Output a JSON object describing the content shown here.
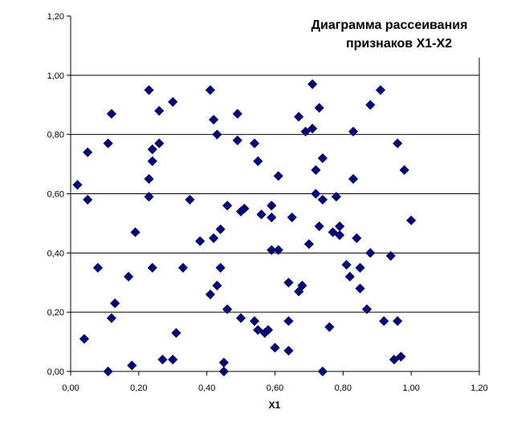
{
  "chart_data": {
    "type": "scatter",
    "title_lines": [
      "Диаграмма рассеивания",
      "признаков X1-X2"
    ],
    "xlabel": "X1",
    "ylabel": "",
    "xlim": [
      0,
      1.2
    ],
    "ylim": [
      0,
      1.2
    ],
    "x_ticks": [
      "0,00",
      "0,20",
      "0,40",
      "0,60",
      "0,80",
      "1,00",
      "1,20"
    ],
    "y_ticks": [
      "0,00",
      "0,20",
      "0,40",
      "0,60",
      "0,80",
      "1,00",
      "1,20"
    ],
    "grid": "horizontal",
    "legend": "none",
    "marker": "diamond",
    "marker_color": "#000080",
    "series": [
      {
        "points": [
          [
            0.02,
            0.63
          ],
          [
            0.04,
            0.11
          ],
          [
            0.05,
            0.58
          ],
          [
            0.05,
            0.74
          ],
          [
            0.08,
            0.35
          ],
          [
            0.11,
            0.77
          ],
          [
            0.11,
            0.0
          ],
          [
            0.12,
            0.18
          ],
          [
            0.12,
            0.87
          ],
          [
            0.13,
            0.23
          ],
          [
            0.17,
            0.32
          ],
          [
            0.18,
            0.02
          ],
          [
            0.19,
            0.47
          ],
          [
            0.23,
            0.95
          ],
          [
            0.23,
            0.65
          ],
          [
            0.23,
            0.59
          ],
          [
            0.24,
            0.75
          ],
          [
            0.24,
            0.71
          ],
          [
            0.24,
            0.35
          ],
          [
            0.26,
            0.77
          ],
          [
            0.26,
            0.88
          ],
          [
            0.27,
            0.04
          ],
          [
            0.3,
            0.91
          ],
          [
            0.3,
            0.04
          ],
          [
            0.31,
            0.13
          ],
          [
            0.33,
            0.35
          ],
          [
            0.35,
            0.58
          ],
          [
            0.38,
            0.44
          ],
          [
            0.41,
            0.95
          ],
          [
            0.41,
            0.26
          ],
          [
            0.42,
            0.45
          ],
          [
            0.42,
            0.85
          ],
          [
            0.43,
            0.8
          ],
          [
            0.43,
            0.29
          ],
          [
            0.44,
            0.35
          ],
          [
            0.44,
            0.48
          ],
          [
            0.45,
            0.03
          ],
          [
            0.45,
            0.0
          ],
          [
            0.46,
            0.56
          ],
          [
            0.46,
            0.21
          ],
          [
            0.49,
            0.87
          ],
          [
            0.49,
            0.78
          ],
          [
            0.5,
            0.54
          ],
          [
            0.5,
            0.18
          ],
          [
            0.51,
            0.55
          ],
          [
            0.54,
            0.77
          ],
          [
            0.54,
            0.17
          ],
          [
            0.55,
            0.14
          ],
          [
            0.55,
            0.71
          ],
          [
            0.56,
            0.53
          ],
          [
            0.57,
            0.13
          ],
          [
            0.58,
            0.14
          ],
          [
            0.59,
            0.56
          ],
          [
            0.59,
            0.52
          ],
          [
            0.59,
            0.41
          ],
          [
            0.6,
            0.08
          ],
          [
            0.61,
            0.66
          ],
          [
            0.61,
            0.41
          ],
          [
            0.64,
            0.3
          ],
          [
            0.64,
            0.17
          ],
          [
            0.64,
            0.07
          ],
          [
            0.65,
            0.52
          ],
          [
            0.67,
            0.27
          ],
          [
            0.67,
            0.86
          ],
          [
            0.68,
            0.29
          ],
          [
            0.69,
            0.81
          ],
          [
            0.7,
            0.43
          ],
          [
            0.71,
            0.82
          ],
          [
            0.71,
            0.97
          ],
          [
            0.72,
            0.68
          ],
          [
            0.72,
            0.6
          ],
          [
            0.73,
            0.49
          ],
          [
            0.73,
            0.89
          ],
          [
            0.74,
            0.58
          ],
          [
            0.74,
            0.0
          ],
          [
            0.74,
            0.72
          ],
          [
            0.76,
            0.15
          ],
          [
            0.77,
            0.47
          ],
          [
            0.78,
            0.59
          ],
          [
            0.79,
            0.49
          ],
          [
            0.79,
            0.46
          ],
          [
            0.81,
            0.36
          ],
          [
            0.82,
            0.32
          ],
          [
            0.83,
            0.81
          ],
          [
            0.83,
            0.65
          ],
          [
            0.84,
            0.45
          ],
          [
            0.85,
            0.35
          ],
          [
            0.85,
            0.28
          ],
          [
            0.87,
            0.21
          ],
          [
            0.88,
            0.9
          ],
          [
            0.88,
            0.4
          ],
          [
            0.91,
            0.95
          ],
          [
            0.92,
            0.17
          ],
          [
            0.94,
            0.39
          ],
          [
            0.95,
            0.04
          ],
          [
            0.96,
            0.77
          ],
          [
            0.96,
            0.17
          ],
          [
            0.97,
            0.05
          ],
          [
            0.98,
            0.68
          ],
          [
            1.0,
            0.51
          ]
        ]
      }
    ]
  }
}
